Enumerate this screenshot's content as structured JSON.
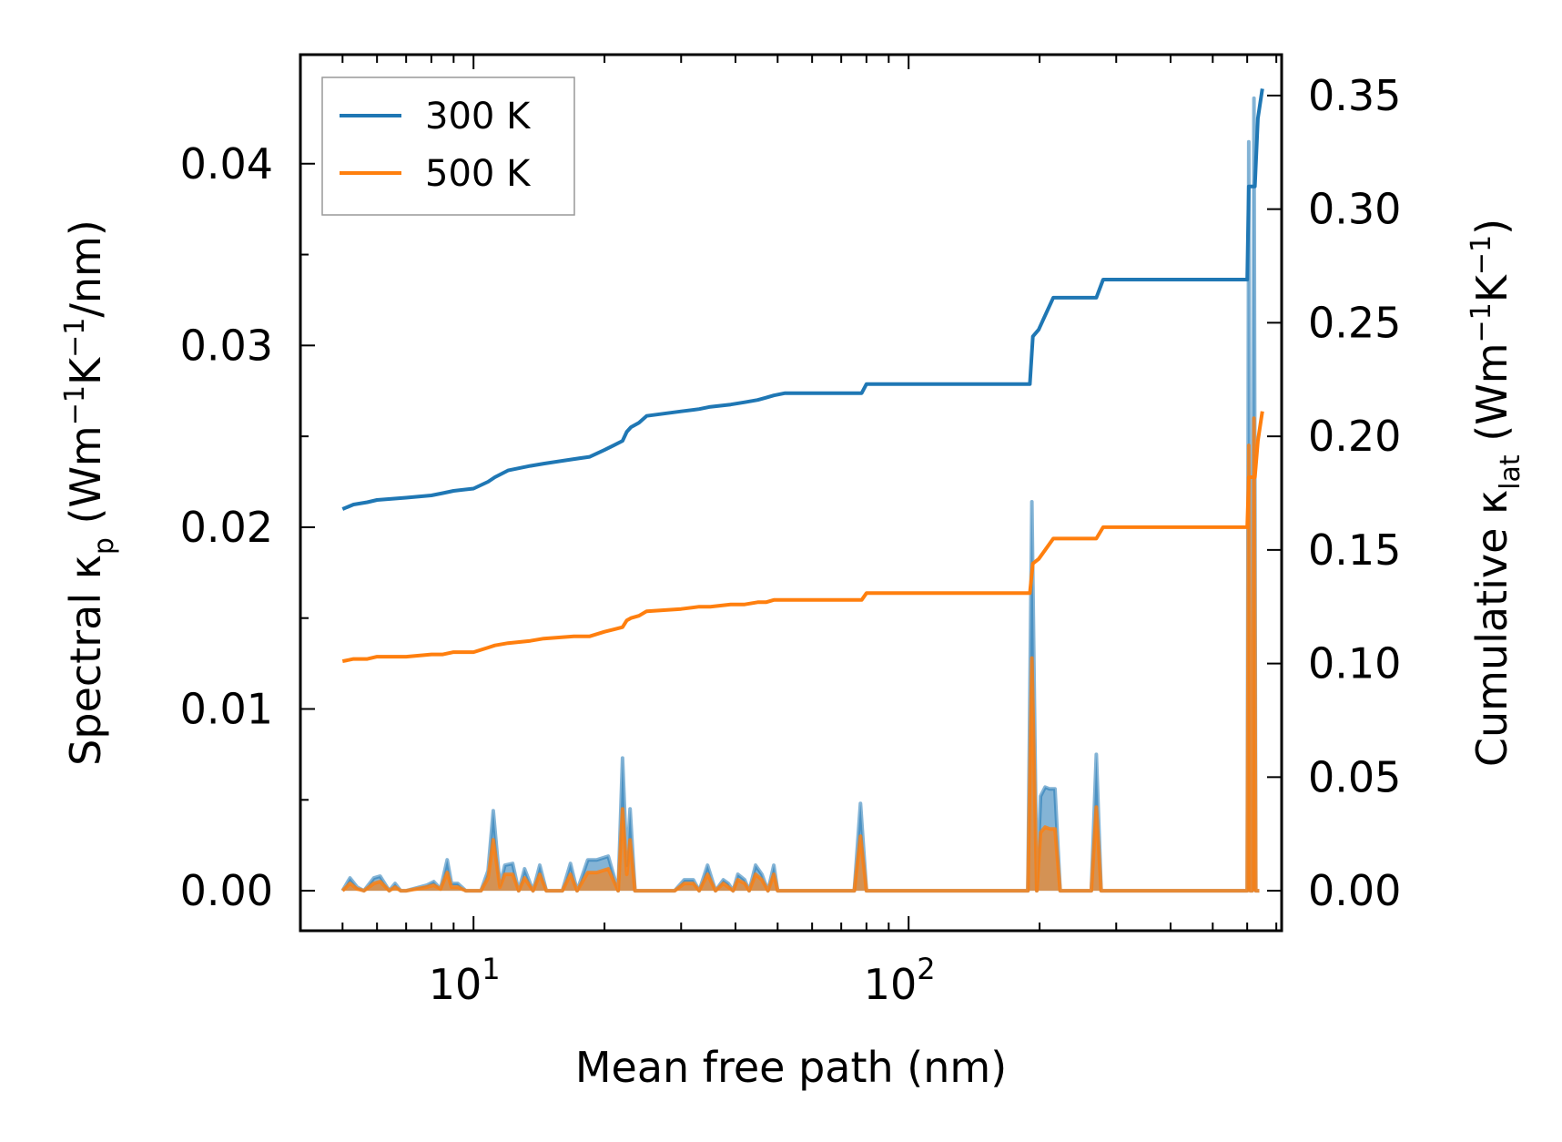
{
  "chart_data": {
    "type": "line",
    "xscale": "log",
    "xlabel": "Mean free path (nm)",
    "ylabel_left": {
      "main": "Spectral κ",
      "sub": "p",
      "unit_open": " (Wm",
      "sup1": "−1",
      "unit_mid": "K",
      "sup2": "−1",
      "unit_close": "/nm)"
    },
    "ylabel_right": {
      "main": "Cumulative κ",
      "sub": "lat",
      "unit_open": " (Wm",
      "sup1": "−1",
      "unit_mid": "K",
      "sup2": "−1",
      "unit_close": ")"
    },
    "xlim": [
      4,
      720
    ],
    "ylim_left": [
      -0.0022,
      0.046
    ],
    "ylim_right": [
      -0.0176,
      0.368
    ],
    "xticks": [
      {
        "value": 10,
        "base": "10",
        "exp": "1"
      },
      {
        "value": 100,
        "base": "10",
        "exp": "2"
      }
    ],
    "yticks_left": [
      {
        "value": 0.0,
        "label": "0.00"
      },
      {
        "value": 0.01,
        "label": "0.01"
      },
      {
        "value": 0.02,
        "label": "0.02"
      },
      {
        "value": 0.03,
        "label": "0.03"
      },
      {
        "value": 0.04,
        "label": "0.04"
      }
    ],
    "yticks_right": [
      {
        "value": 0.0,
        "label": "0.00"
      },
      {
        "value": 0.05,
        "label": "0.05"
      },
      {
        "value": 0.1,
        "label": "0.10"
      },
      {
        "value": 0.15,
        "label": "0.15"
      },
      {
        "value": 0.2,
        "label": "0.20"
      },
      {
        "value": 0.25,
        "label": "0.25"
      },
      {
        "value": 0.3,
        "label": "0.30"
      },
      {
        "value": 0.35,
        "label": "0.35"
      }
    ],
    "legend": {
      "location": "top-left",
      "entries": [
        {
          "name": "300 K",
          "color": "#1f77b4"
        },
        {
          "name": "500 K",
          "color": "#ff7f0e"
        }
      ]
    },
    "series": [
      {
        "name": "300 K",
        "color": "#1f77b4",
        "cumulative": {
          "axis": "right",
          "x": [
            5,
            5.3,
            5.7,
            6,
            7,
            8,
            8.5,
            9,
            10,
            10.8,
            11.2,
            12,
            13.5,
            14.5,
            17,
            18.5,
            20,
            21,
            22,
            22.5,
            23,
            24,
            25,
            30,
            33,
            35,
            39,
            42,
            45,
            47,
            49,
            52,
            70,
            78,
            80,
            190,
            193,
            199,
            215,
            270,
            280,
            300,
            600,
            605,
            625,
            635,
            650
          ],
          "y": [
            0.168,
            0.17,
            0.171,
            0.172,
            0.173,
            0.174,
            0.175,
            0.176,
            0.177,
            0.18,
            0.182,
            0.185,
            0.187,
            0.188,
            0.19,
            0.191,
            0.194,
            0.196,
            0.198,
            0.202,
            0.204,
            0.206,
            0.209,
            0.211,
            0.212,
            0.213,
            0.214,
            0.215,
            0.216,
            0.217,
            0.218,
            0.219,
            0.219,
            0.219,
            0.223,
            0.223,
            0.244,
            0.247,
            0.261,
            0.261,
            0.269,
            0.269,
            0.269,
            0.31,
            0.31,
            0.34,
            0.353
          ]
        },
        "spectral": {
          "axis": "left",
          "x": [
            5,
            5.2,
            5.4,
            5.6,
            5.9,
            6.1,
            6.4,
            6.6,
            6.8,
            7,
            7.8,
            8.1,
            8.4,
            8.7,
            8.9,
            9.2,
            9.6,
            10.4,
            10.8,
            11.1,
            11.5,
            11.8,
            12.3,
            12.7,
            13.1,
            13.7,
            14.2,
            14.7,
            16,
            16.7,
            17.3,
            18.3,
            19.2,
            20.4,
            21.5,
            22,
            22.5,
            22.9,
            23.5,
            24,
            24.5,
            25,
            25.5,
            29,
            30.5,
            32,
            33,
            34.5,
            36,
            37.5,
            38.5,
            39.5,
            40.5,
            42,
            43,
            44.5,
            46,
            47.5,
            49,
            50,
            51.5,
            75,
            77.5,
            80,
            183,
            188,
            192,
            197,
            201,
            206,
            211,
            217,
            223,
            228,
            263,
            270,
            277,
            600,
            605,
            610,
            616,
            622,
            628,
            635,
            640
          ],
          "y": [
            0,
            0.0007,
            0.0002,
            0,
            0.0007,
            0.0008,
            0,
            0.0004,
            0,
            0,
            0.0003,
            0.0005,
            0.0001,
            0.0017,
            0.0004,
            0.0004,
            0,
            0,
            0.0011,
            0.0044,
            0.0003,
            0.0014,
            0.0015,
            0,
            0.0012,
            0,
            0.0014,
            0,
            0,
            0.0015,
            0,
            0.0017,
            0.0017,
            0.0019,
            0,
            0.0073,
            0.0014,
            0.0045,
            0,
            0,
            0,
            0,
            0,
            0,
            0.0006,
            0.0006,
            0,
            0.0014,
            0,
            0.0006,
            0.0004,
            0,
            0.0009,
            0.0006,
            0,
            0.0014,
            0.0009,
            0,
            0.0014,
            0,
            0,
            0,
            0.0048,
            0,
            0,
            0,
            0.0214,
            0,
            0.0052,
            0.0057,
            0.0056,
            0.0056,
            0,
            0,
            0,
            0.0075,
            0,
            0,
            0.0412,
            0,
            0,
            0.0436,
            0,
            0,
            0
          ]
        }
      },
      {
        "name": "500 K",
        "color": "#ff7f0e",
        "cumulative": {
          "axis": "right",
          "x": [
            5,
            5.3,
            5.7,
            6,
            7,
            8,
            8.5,
            9,
            10,
            10.8,
            11.2,
            12,
            13.5,
            14.5,
            17,
            18.5,
            20,
            21,
            22,
            22.5,
            23,
            24,
            25,
            30,
            33,
            35,
            39,
            42,
            45,
            47,
            49,
            52,
            70,
            78,
            80,
            190,
            193,
            199,
            215,
            270,
            280,
            300,
            600,
            605,
            625,
            635,
            650
          ],
          "y": [
            0.101,
            0.102,
            0.102,
            0.103,
            0.103,
            0.104,
            0.104,
            0.105,
            0.105,
            0.107,
            0.108,
            0.109,
            0.11,
            0.111,
            0.112,
            0.112,
            0.114,
            0.115,
            0.116,
            0.119,
            0.12,
            0.121,
            0.123,
            0.124,
            0.125,
            0.125,
            0.126,
            0.126,
            0.127,
            0.127,
            0.128,
            0.128,
            0.128,
            0.128,
            0.131,
            0.131,
            0.144,
            0.146,
            0.155,
            0.155,
            0.16,
            0.16,
            0.16,
            0.182,
            0.182,
            0.198,
            0.211
          ]
        },
        "spectral": {
          "axis": "left",
          "x": [
            5,
            5.2,
            5.4,
            5.6,
            5.9,
            6.1,
            6.4,
            6.6,
            6.8,
            7,
            7.8,
            8.1,
            8.4,
            8.7,
            8.9,
            9.2,
            9.6,
            10.4,
            10.8,
            11.1,
            11.5,
            11.8,
            12.3,
            12.7,
            13.1,
            13.7,
            14.2,
            14.7,
            16,
            16.7,
            17.3,
            18.3,
            19.2,
            20.4,
            21.5,
            22,
            22.5,
            22.9,
            23.5,
            24,
            24.5,
            25,
            25.5,
            29,
            30.5,
            32,
            33,
            34.5,
            36,
            37.5,
            38.5,
            39.5,
            40.5,
            42,
            43,
            44.5,
            46,
            47.5,
            49,
            50,
            51.5,
            75,
            77.5,
            80,
            183,
            188,
            192,
            197,
            201,
            206,
            211,
            217,
            223,
            228,
            263,
            270,
            277,
            600,
            605,
            610,
            616,
            622,
            628,
            635,
            640
          ],
          "y": [
            0,
            0.0004,
            0.0001,
            0,
            0.0004,
            0.0005,
            0,
            0.0002,
            0,
            0,
            0.0002,
            0.0003,
            0.0001,
            0.001,
            0.0002,
            0.0002,
            0,
            0,
            0.0007,
            0.0028,
            0.0002,
            0.0009,
            0.0009,
            0,
            0.0007,
            0,
            0.0009,
            0,
            0,
            0.0009,
            0,
            0.001,
            0.001,
            0.0012,
            0,
            0.0045,
            0.0009,
            0.0028,
            0,
            0,
            0,
            0,
            0,
            0,
            0.0004,
            0.0004,
            0,
            0.0009,
            0,
            0.0004,
            0.0002,
            0,
            0.0006,
            0.0004,
            0,
            0.0009,
            0.0006,
            0,
            0.0009,
            0,
            0,
            0,
            0.003,
            0,
            0,
            0,
            0.0128,
            0,
            0.0032,
            0.0035,
            0.0034,
            0.0034,
            0,
            0,
            0,
            0.0046,
            0,
            0,
            0.0245,
            0,
            0,
            0.026,
            0,
            0,
            0
          ]
        }
      }
    ]
  }
}
